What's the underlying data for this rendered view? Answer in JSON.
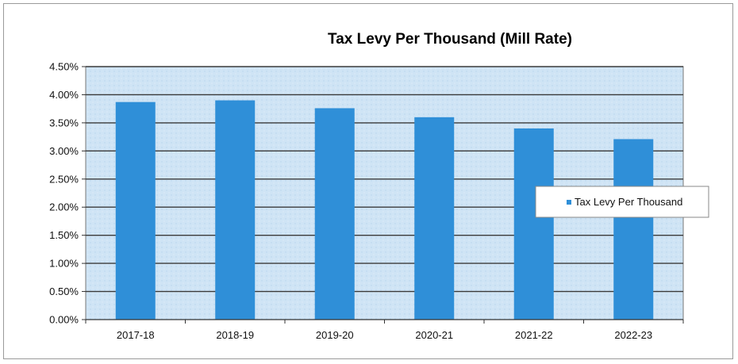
{
  "chart_data": {
    "type": "bar",
    "title": "Tax Levy Per Thousand (Mill Rate)",
    "categories": [
      "2017-18",
      "2018-19",
      "2019-20",
      "2020-21",
      "2021-22",
      "2022-23"
    ],
    "series": [
      {
        "name": "Tax Levy Per Thousand",
        "values": [
          3.87,
          3.9,
          3.76,
          3.6,
          3.4,
          3.21
        ]
      }
    ],
    "ylim": [
      0,
      4.5
    ],
    "y_ticks": [
      "0.00%",
      "0.50%",
      "1.00%",
      "1.50%",
      "2.00%",
      "2.50%",
      "3.00%",
      "3.50%",
      "4.00%",
      "4.50%"
    ],
    "y_tick_values": [
      0,
      0.5,
      1,
      1.5,
      2,
      2.5,
      3,
      3.5,
      4,
      4.5
    ],
    "grid": true,
    "legend_position": "right",
    "colors": {
      "bar": "#2f8fd8",
      "plot_bg": "#cfe4f5",
      "grid": "#3a3a3a"
    }
  }
}
